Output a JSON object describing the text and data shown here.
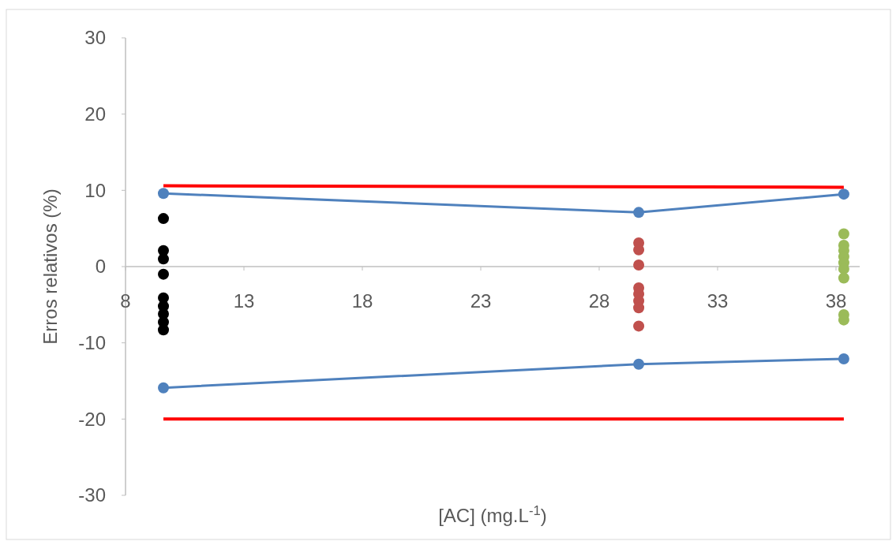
{
  "chart_data": {
    "type": "scatter",
    "xlabel": "[AC] (mg.L$^{-1}$)",
    "ylabel": "Erros relativos (%)",
    "xlim": [
      8,
      39
    ],
    "xticks": [
      8,
      13,
      18,
      23,
      28,
      33,
      38
    ],
    "ylim": [
      -30,
      30
    ],
    "yticks": [
      -30,
      -20,
      -10,
      0,
      10,
      20,
      30
    ],
    "grid": false,
    "marker": "circle",
    "series": [
      {
        "color": "#000000",
        "x": [
          9.6,
          9.6,
          9.6,
          9.6,
          9.6,
          9.6,
          9.6,
          9.6,
          9.6
        ],
        "values": [
          6.3,
          2.1,
          1.0,
          -1.0,
          -4.1,
          -5.2,
          -6.2,
          -7.3,
          -8.3
        ]
      },
      {
        "color": "#c0504d",
        "x": [
          29.67,
          29.67,
          29.67,
          29.67,
          29.67,
          29.67,
          29.67,
          29.67
        ],
        "values": [
          3.1,
          2.2,
          0.2,
          -2.8,
          -3.6,
          -4.5,
          -5.4,
          -7.8
        ]
      },
      {
        "color": "#9bbb59",
        "x": [
          38.33,
          38.33,
          38.33,
          38.33,
          38.33,
          38.33,
          38.33,
          38.33,
          38.33
        ],
        "values": [
          4.3,
          2.8,
          2.1,
          1.3,
          0.5,
          -0.3,
          -1.5,
          -6.3,
          -7.0
        ]
      },
      {
        "type": "line",
        "color": "#4f81bd",
        "marker": "circle",
        "x": [
          9.6,
          29.67,
          38.33
        ],
        "values": [
          9.6,
          7.1,
          9.5
        ]
      },
      {
        "type": "line",
        "color": "#4f81bd",
        "marker": "circle",
        "x": [
          9.6,
          29.67,
          38.33
        ],
        "values": [
          -15.9,
          -12.8,
          -12.1
        ]
      },
      {
        "type": "line",
        "color": "#ff0000",
        "marker": "none",
        "x": [
          9.6,
          38.33
        ],
        "values": [
          10.6,
          10.4
        ]
      },
      {
        "type": "line",
        "color": "#ff0000",
        "marker": "none",
        "x": [
          9.6,
          38.33
        ],
        "values": [
          -20,
          -20
        ]
      }
    ]
  }
}
